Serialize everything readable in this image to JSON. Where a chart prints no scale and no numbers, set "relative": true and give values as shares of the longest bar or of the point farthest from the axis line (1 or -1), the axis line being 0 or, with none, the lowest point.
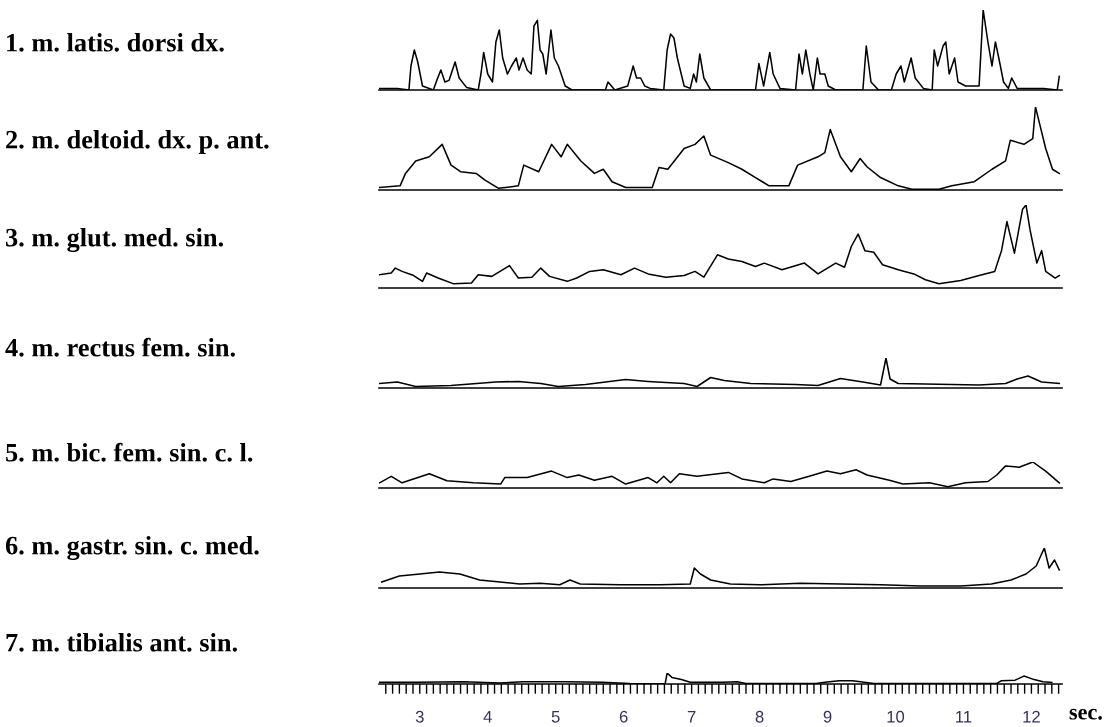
{
  "chart_data": [
    {
      "type": "line",
      "title": "1. m. latis. dorsi dx.",
      "relative": true,
      "xlim": [
        2.4,
        12.45
      ],
      "series": [
        {
          "color": "#000000",
          "x": [
            2.41,
            2.67,
            2.84,
            2.87,
            2.92,
            2.97,
            3.04,
            3.2,
            3.25,
            3.31,
            3.37,
            3.43,
            3.52,
            3.58,
            3.69,
            3.86,
            3.9,
            3.94,
            4.0,
            4.07,
            4.12,
            4.17,
            4.22,
            4.29,
            4.35,
            4.42,
            4.46,
            4.52,
            4.58,
            4.64,
            4.68,
            4.73,
            4.77,
            4.81,
            4.86,
            4.93,
            4.98,
            5.04,
            5.14,
            5.24,
            5.73,
            5.77,
            5.87,
            6.06,
            6.14,
            6.19,
            6.25,
            6.31,
            6.39,
            6.59,
            6.64,
            6.69,
            6.74,
            6.79,
            6.89,
            6.98,
            7.03,
            7.07,
            7.12,
            7.18,
            7.28,
            7.94,
            7.99,
            8.06,
            8.15,
            8.2,
            8.3,
            8.53,
            8.58,
            8.63,
            8.68,
            8.74,
            8.79,
            8.85,
            8.89,
            8.96,
            9.01,
            9.12,
            9.52,
            9.57,
            9.64,
            9.75,
            9.94,
            10.01,
            10.08,
            10.13,
            10.23,
            10.29,
            10.41,
            10.54,
            10.57,
            10.62,
            10.7,
            10.74,
            10.79,
            10.87,
            10.92,
            11.03,
            11.23,
            11.29,
            11.36,
            11.42,
            11.47,
            11.52,
            11.59,
            11.66,
            11.71,
            11.79,
            12.18,
            12.38,
            12.41
          ],
          "values": [
            0.02,
            0.02,
            0,
            0.3,
            0.5,
            0.35,
            0.05,
            0,
            0.12,
            0.25,
            0.1,
            0.12,
            0.35,
            0.15,
            0.03,
            0,
            0.2,
            0.47,
            0.2,
            0.1,
            0.6,
            0.75,
            0.4,
            0.2,
            0.3,
            0.4,
            0.25,
            0.4,
            0.25,
            0.2,
            0.8,
            0.87,
            0.5,
            0.45,
            0.2,
            0.75,
            0.4,
            0.3,
            0.05,
            0,
            0,
            0.1,
            0,
            0.05,
            0.3,
            0.15,
            0.15,
            0.05,
            0.02,
            0,
            0.5,
            0.7,
            0.65,
            0.4,
            0.05,
            0.02,
            0.2,
            0.1,
            0.45,
            0.15,
            0,
            0,
            0.33,
            0.05,
            0.47,
            0.2,
            0.02,
            0,
            0.45,
            0.2,
            0.5,
            0.2,
            0,
            0.4,
            0.2,
            0.2,
            0.05,
            0,
            0,
            0.55,
            0.1,
            0,
            0,
            0.2,
            0.3,
            0.1,
            0.4,
            0.15,
            0.02,
            0,
            0.5,
            0.3,
            0.55,
            0.6,
            0.2,
            0.4,
            0.1,
            0.05,
            0.05,
            1.0,
            0.6,
            0.3,
            0.6,
            0.4,
            0.1,
            0.02,
            0.15,
            0.02,
            0.02,
            0,
            0.17
          ]
        }
      ]
    },
    {
      "type": "line",
      "title": "2. m. deltoid. dx. p. ant.",
      "relative": true,
      "xlim": [
        2.4,
        12.45
      ],
      "series": [
        {
          "color": "#000000",
          "x": [
            2.41,
            2.71,
            2.79,
            2.94,
            3.14,
            3.33,
            3.46,
            3.6,
            3.83,
            3.96,
            4.16,
            4.45,
            4.53,
            4.75,
            4.94,
            5.08,
            5.17,
            5.37,
            5.57,
            5.7,
            5.83,
            6.03,
            6.42,
            6.52,
            6.65,
            6.89,
            7.05,
            7.18,
            7.28,
            7.54,
            7.74,
            7.94,
            8.14,
            8.43,
            8.56,
            8.86,
            8.96,
            9.04,
            9.19,
            9.35,
            9.48,
            9.58,
            9.78,
            10.04,
            10.24,
            10.64,
            10.83,
            11.16,
            11.42,
            11.62,
            11.69,
            11.89,
            12.02,
            12.06,
            12.12,
            12.21,
            12.31,
            12.41
          ],
          "values": [
            0.03,
            0.05,
            0.2,
            0.35,
            0.4,
            0.55,
            0.3,
            0.22,
            0.2,
            0.12,
            0.02,
            0.05,
            0.3,
            0.22,
            0.55,
            0.4,
            0.55,
            0.35,
            0.2,
            0.25,
            0.1,
            0.03,
            0.03,
            0.27,
            0.25,
            0.5,
            0.55,
            0.65,
            0.42,
            0.33,
            0.25,
            0.15,
            0.05,
            0.05,
            0.3,
            0.4,
            0.45,
            0.73,
            0.4,
            0.22,
            0.38,
            0.28,
            0.15,
            0.05,
            0.01,
            0.01,
            0.05,
            0.1,
            0.25,
            0.35,
            0.6,
            0.55,
            0.62,
            1.0,
            0.8,
            0.5,
            0.25,
            0.2
          ]
        }
      ]
    },
    {
      "type": "line",
      "title": "3. m. glut. med. sin.",
      "relative": true,
      "xlim": [
        2.4,
        12.45
      ],
      "series": [
        {
          "color": "#000000",
          "x": [
            2.41,
            2.58,
            2.64,
            2.74,
            2.91,
            3.04,
            3.1,
            3.27,
            3.5,
            3.76,
            3.86,
            4.06,
            4.32,
            4.45,
            4.65,
            4.78,
            4.91,
            5.17,
            5.31,
            5.5,
            5.7,
            5.96,
            6.16,
            6.36,
            6.62,
            6.89,
            7.05,
            7.18,
            7.38,
            7.54,
            7.74,
            7.94,
            8.07,
            8.33,
            8.66,
            8.86,
            9.12,
            9.25,
            9.35,
            9.45,
            9.55,
            9.68,
            9.81,
            10.04,
            10.27,
            10.44,
            10.64,
            10.96,
            11.23,
            11.46,
            11.56,
            11.64,
            11.75,
            11.87,
            11.92,
            11.98,
            12.08,
            12.15,
            12.21,
            12.35,
            12.41
          ],
          "values": [
            0.16,
            0.18,
            0.24,
            0.2,
            0.15,
            0.08,
            0.18,
            0.12,
            0.05,
            0.06,
            0.16,
            0.14,
            0.27,
            0.12,
            0.13,
            0.24,
            0.14,
            0.08,
            0.12,
            0.2,
            0.22,
            0.16,
            0.24,
            0.17,
            0.13,
            0.15,
            0.2,
            0.13,
            0.4,
            0.35,
            0.32,
            0.26,
            0.3,
            0.22,
            0.3,
            0.17,
            0.3,
            0.25,
            0.5,
            0.65,
            0.45,
            0.43,
            0.28,
            0.22,
            0.17,
            0.1,
            0.05,
            0.09,
            0.15,
            0.2,
            0.45,
            0.8,
            0.42,
            0.95,
            1.0,
            0.7,
            0.3,
            0.45,
            0.2,
            0.12,
            0.15
          ]
        }
      ]
    },
    {
      "type": "line",
      "title": "4. m. rectus fem. sin.",
      "relative": true,
      "xlim": [
        2.4,
        12.45
      ],
      "series": [
        {
          "color": "#000000",
          "x": [
            2.41,
            2.67,
            2.94,
            3.46,
            4.12,
            4.45,
            4.78,
            5.04,
            5.44,
            6.03,
            6.36,
            6.89,
            7.08,
            7.28,
            7.48,
            7.87,
            8.53,
            8.86,
            9.19,
            9.52,
            9.78,
            9.86,
            9.92,
            10.04,
            10.83,
            11.23,
            11.62,
            11.79,
            11.95,
            12.15,
            12.41
          ],
          "values": [
            0.15,
            0.2,
            0.05,
            0.08,
            0.2,
            0.22,
            0.15,
            0.05,
            0.12,
            0.28,
            0.22,
            0.15,
            0.05,
            0.35,
            0.25,
            0.15,
            0.12,
            0.08,
            0.32,
            0.2,
            0.1,
            1.0,
            0.3,
            0.15,
            0.12,
            0.1,
            0.15,
            0.3,
            0.4,
            0.2,
            0.15
          ]
        }
      ]
    },
    {
      "type": "line",
      "title": "5. m. bic. fem. sin. c. l.",
      "relative": true,
      "xlim": [
        2.4,
        12.45
      ],
      "series": [
        {
          "color": "#000000",
          "x": [
            2.41,
            2.58,
            2.74,
            3.14,
            3.4,
            3.79,
            4.19,
            4.25,
            4.58,
            4.94,
            5.17,
            5.34,
            5.57,
            5.83,
            6.03,
            6.36,
            6.49,
            6.59,
            6.69,
            6.82,
            7.08,
            7.54,
            7.74,
            8.07,
            8.2,
            8.46,
            8.73,
            8.99,
            9.19,
            9.42,
            9.58,
            9.91,
            10.11,
            10.5,
            10.77,
            11.03,
            11.36,
            11.49,
            11.62,
            11.82,
            12.02,
            12.21,
            12.41
          ],
          "values": [
            0.2,
            0.45,
            0.2,
            0.55,
            0.28,
            0.2,
            0.15,
            0.4,
            0.4,
            0.65,
            0.4,
            0.5,
            0.3,
            0.45,
            0.15,
            0.4,
            0.2,
            0.45,
            0.2,
            0.55,
            0.45,
            0.6,
            0.35,
            0.2,
            0.35,
            0.25,
            0.45,
            0.65,
            0.55,
            0.7,
            0.5,
            0.3,
            0.15,
            0.2,
            0.05,
            0.2,
            0.25,
            0.5,
            0.85,
            0.8,
            1.0,
            0.65,
            0.2
          ]
        }
      ]
    },
    {
      "type": "line",
      "title": "6. m. gastr. sin. c. med.",
      "relative": true,
      "xlim": [
        2.4,
        12.45
      ],
      "series": [
        {
          "color": "#000000",
          "x": [
            2.44,
            2.7,
            3.0,
            3.29,
            3.59,
            3.88,
            4.18,
            4.47,
            4.77,
            5.06,
            5.21,
            5.36,
            5.95,
            6.54,
            6.98,
            7.04,
            7.13,
            7.28,
            7.57,
            8.01,
            8.6,
            9.19,
            9.78,
            10.37,
            10.96,
            11.41,
            11.7,
            11.92,
            12.07,
            12.19,
            12.26,
            12.34,
            12.41
          ],
          "values": [
            0.15,
            0.3,
            0.35,
            0.4,
            0.35,
            0.2,
            0.15,
            0.1,
            0.12,
            0.08,
            0.2,
            0.1,
            0.08,
            0.08,
            0.1,
            0.5,
            0.35,
            0.2,
            0.1,
            0.08,
            0.12,
            0.1,
            0.08,
            0.05,
            0.05,
            0.1,
            0.2,
            0.35,
            0.55,
            1.0,
            0.5,
            0.7,
            0.45
          ]
        }
      ]
    },
    {
      "type": "line",
      "title": "7. m. tibialis ant. sin.",
      "relative": true,
      "xlim": [
        2.4,
        12.45
      ],
      "xlabel": "sec.",
      "xticks": [
        {
          "value": 2.5,
          "label": null
        },
        {
          "value": 2.6,
          "label": null
        },
        {
          "value": 2.7,
          "label": null
        },
        {
          "value": 2.8,
          "label": null
        },
        {
          "value": 2.9,
          "label": null
        },
        3,
        {
          "value": 3.1,
          "label": null
        },
        {
          "value": 3.2,
          "label": null
        },
        {
          "value": 3.3,
          "label": null
        },
        {
          "value": 3.4,
          "label": null
        },
        {
          "value": 3.5,
          "label": null
        },
        {
          "value": 3.6,
          "label": null
        },
        {
          "value": 3.7,
          "label": null
        },
        {
          "value": 3.8,
          "label": null
        },
        {
          "value": 3.9,
          "label": null
        },
        4,
        {
          "value": 4.1,
          "label": null
        },
        {
          "value": 4.2,
          "label": null
        },
        {
          "value": 4.3,
          "label": null
        },
        {
          "value": 4.4,
          "label": null
        },
        {
          "value": 4.5,
          "label": null
        },
        {
          "value": 4.6,
          "label": null
        },
        {
          "value": 4.7,
          "label": null
        },
        {
          "value": 4.8,
          "label": null
        },
        {
          "value": 4.9,
          "label": null
        },
        5,
        {
          "value": 5.1,
          "label": null
        },
        {
          "value": 5.2,
          "label": null
        },
        {
          "value": 5.3,
          "label": null
        },
        {
          "value": 5.4,
          "label": null
        },
        {
          "value": 5.5,
          "label": null
        },
        {
          "value": 5.6,
          "label": null
        },
        {
          "value": 5.7,
          "label": null
        },
        {
          "value": 5.8,
          "label": null
        },
        {
          "value": 5.9,
          "label": null
        },
        6,
        {
          "value": 6.1,
          "label": null
        },
        {
          "value": 6.2,
          "label": null
        },
        {
          "value": 6.3,
          "label": null
        },
        {
          "value": 6.4,
          "label": null
        },
        {
          "value": 6.5,
          "label": null
        },
        {
          "value": 6.6,
          "label": null
        },
        {
          "value": 6.7,
          "label": null
        },
        {
          "value": 6.8,
          "label": null
        },
        {
          "value": 6.9,
          "label": null
        },
        7,
        {
          "value": 7.1,
          "label": null
        },
        {
          "value": 7.2,
          "label": null
        },
        {
          "value": 7.3,
          "label": null
        },
        {
          "value": 7.4,
          "label": null
        },
        {
          "value": 7.5,
          "label": null
        },
        {
          "value": 7.6,
          "label": null
        },
        {
          "value": 7.7,
          "label": null
        },
        {
          "value": 7.8,
          "label": null
        },
        {
          "value": 7.9,
          "label": null
        },
        8,
        {
          "value": 8.1,
          "label": null
        },
        {
          "value": 8.2,
          "label": null
        },
        {
          "value": 8.3,
          "label": null
        },
        {
          "value": 8.4,
          "label": null
        },
        {
          "value": 8.5,
          "label": null
        },
        {
          "value": 8.6,
          "label": null
        },
        {
          "value": 8.7,
          "label": null
        },
        {
          "value": 8.8,
          "label": null
        },
        {
          "value": 8.9,
          "label": null
        },
        9,
        {
          "value": 9.1,
          "label": null
        },
        {
          "value": 9.2,
          "label": null
        },
        {
          "value": 9.3,
          "label": null
        },
        {
          "value": 9.4,
          "label": null
        },
        {
          "value": 9.5,
          "label": null
        },
        {
          "value": 9.6,
          "label": null
        },
        {
          "value": 9.7,
          "label": null
        },
        {
          "value": 9.8,
          "label": null
        },
        {
          "value": 9.9,
          "label": null
        },
        10,
        {
          "value": 10.1,
          "label": null
        },
        {
          "value": 10.2,
          "label": null
        },
        {
          "value": 10.3,
          "label": null
        },
        {
          "value": 10.4,
          "label": null
        },
        {
          "value": 10.5,
          "label": null
        },
        {
          "value": 10.6,
          "label": null
        },
        {
          "value": 10.7,
          "label": null
        },
        {
          "value": 10.8,
          "label": null
        },
        {
          "value": 10.9,
          "label": null
        },
        11,
        {
          "value": 11.1,
          "label": null
        },
        {
          "value": 11.2,
          "label": null
        },
        {
          "value": 11.3,
          "label": null
        },
        {
          "value": 11.4,
          "label": null
        },
        {
          "value": 11.5,
          "label": null
        },
        {
          "value": 11.6,
          "label": null
        },
        {
          "value": 11.7,
          "label": null
        },
        {
          "value": 11.8,
          "label": null
        },
        {
          "value": 11.9,
          "label": null
        },
        12,
        {
          "value": 12.1,
          "label": null
        },
        {
          "value": 12.2,
          "label": null
        },
        {
          "value": 12.3,
          "label": null
        },
        {
          "value": 12.4,
          "label": null
        }
      ],
      "series": [
        {
          "color": "#000000",
          "x": [
            2.41,
            2.95,
            3.64,
            4.18,
            4.52,
            5.14,
            5.68,
            6.09,
            6.61,
            6.64,
            6.71,
            6.85,
            6.98,
            7.46,
            7.67,
            7.8,
            8.83,
            8.96,
            9.17,
            9.37,
            9.68,
            11.49,
            11.56,
            11.76,
            11.89,
            12.04,
            12.17,
            12.3
          ],
          "values": [
            0.15,
            0.15,
            0.2,
            0.1,
            0.2,
            0.2,
            0.15,
            0.05,
            0.02,
            1.0,
            0.6,
            0.4,
            0.15,
            0.15,
            0.2,
            0.05,
            0.05,
            0.15,
            0.3,
            0.3,
            0.05,
            0.05,
            0.3,
            0.35,
            0.72,
            0.4,
            0.2,
            0.15
          ]
        }
      ]
    }
  ]
}
